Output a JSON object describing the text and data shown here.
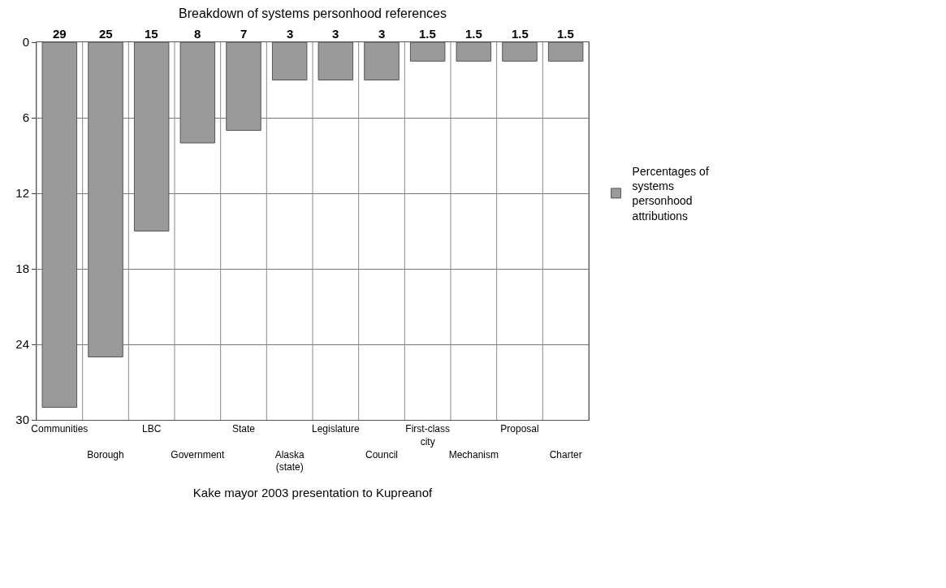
{
  "chart_data": {
    "type": "bar",
    "title": "Breakdown of systems personhood references",
    "xlabel": "Kake mayor 2003 presentation to Kupreanof",
    "categories": [
      "Communities",
      "Borough",
      "LBC",
      "Government",
      "State",
      "Alaska (state)",
      "Legislature",
      "Council",
      "First-class city",
      "Mechanism",
      "Proposal",
      "Charter"
    ],
    "series": [
      {
        "name": "Percentages of systems personhood attributions",
        "color": "#9a9a9a",
        "values": [
          29,
          25,
          15,
          8,
          7,
          3,
          3,
          3,
          1.5,
          1.5,
          1.5,
          1.5
        ]
      }
    ],
    "ylim": [
      30,
      0
    ],
    "yticks": [
      0,
      6,
      12,
      18,
      24,
      30
    ],
    "grid": true,
    "legend": "right",
    "data_labels": true
  }
}
